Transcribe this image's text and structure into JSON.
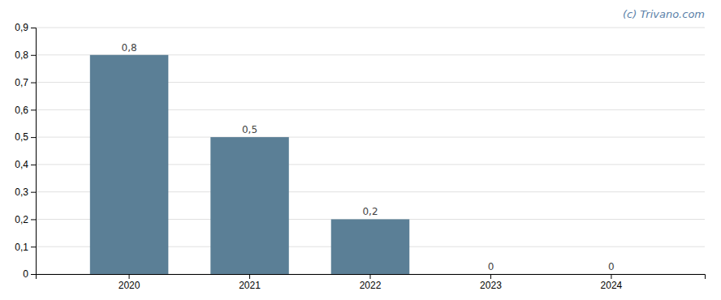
{
  "chart_data": {
    "type": "bar",
    "categories": [
      "2020",
      "2021",
      "2022",
      "2023",
      "2024"
    ],
    "values": [
      0.8,
      0.5,
      0.2,
      0.0,
      0.0
    ],
    "value_labels": [
      "0,8",
      "0,5",
      "0,2",
      "0",
      "0"
    ],
    "data_labels": true,
    "color": "#5b7f96",
    "ylim": [
      0,
      0.9
    ],
    "yticks": [
      0,
      {
        "value": 0.1,
        "label": "0,1"
      },
      {
        "value": 0.2,
        "label": "0,2"
      },
      {
        "value": 0.3,
        "label": "0,3"
      },
      {
        "value": 0.4,
        "label": "0,4"
      },
      {
        "value": 0.5,
        "label": "0,5"
      },
      {
        "value": 0.6,
        "label": "0,6"
      },
      {
        "value": 0.7,
        "label": "0,7"
      },
      {
        "value": 0.8,
        "label": "0,8"
      },
      {
        "value": 0.9,
        "label": "0,9"
      }
    ],
    "grid": true,
    "annotations": [
      "(c) Trivano.com"
    ]
  }
}
